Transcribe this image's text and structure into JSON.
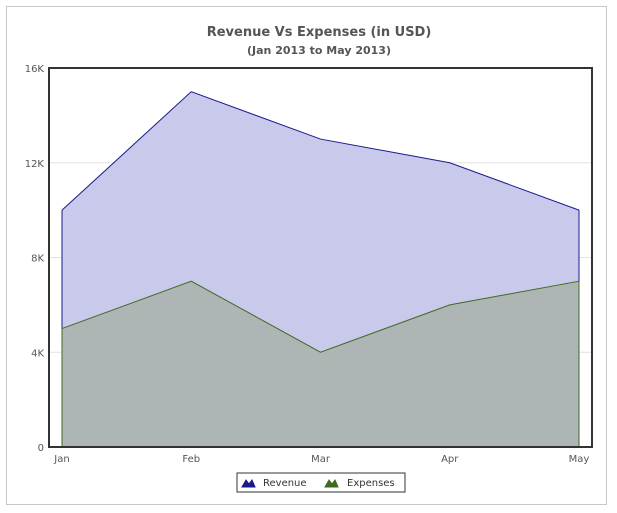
{
  "chart_data": {
    "type": "area",
    "title": "Revenue Vs Expenses (in USD)",
    "subtitle": "(Jan 2013 to May 2013)",
    "categories": [
      "Jan",
      "Feb",
      "Mar",
      "Apr",
      "May"
    ],
    "y_ticks": [
      0,
      4000,
      8000,
      12000,
      16000
    ],
    "y_tick_labels": [
      "0",
      "4K",
      "8K",
      "12K",
      "16K"
    ],
    "ylim": [
      0,
      16000
    ],
    "grid": true,
    "legend_position": "bottom",
    "series": [
      {
        "name": "Revenue",
        "values": [
          10000,
          15000,
          13000,
          12000,
          10000
        ],
        "fill": "#c9c9ec",
        "stroke": "#1a1a8c"
      },
      {
        "name": "Expenses",
        "values": [
          5000,
          7000,
          4000,
          6000,
          7000
        ],
        "fill": "#adb5b5",
        "stroke": "#3d6b1e"
      }
    ]
  }
}
